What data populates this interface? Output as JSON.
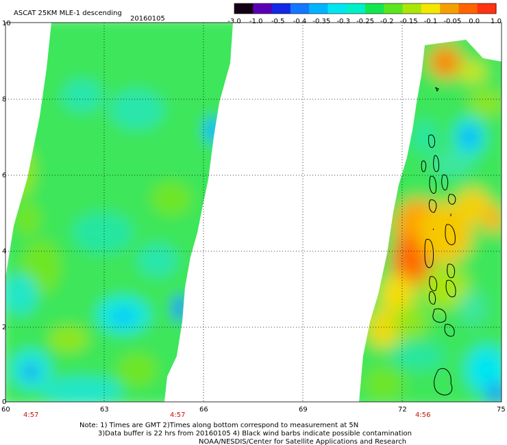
{
  "header": {
    "title": "ASCAT 25KM MLE-1 descending",
    "date": "20160105"
  },
  "colorbar": {
    "tick_labels": [
      "-3.0",
      "-1.0",
      "-0.5",
      "-0.4",
      "-0.35",
      "-0.3",
      "-0.25",
      "-0.2",
      "-0.15",
      "-0.1",
      "-0.05",
      "0.0",
      "1.0"
    ],
    "colors": [
      "#140014",
      "#5a00b4",
      "#1428e6",
      "#1478ff",
      "#00b4ff",
      "#00e6f0",
      "#00f0c8",
      "#14e650",
      "#5ae61e",
      "#aae60a",
      "#f5e600",
      "#f5a000",
      "#ff6400",
      "#ff3214"
    ]
  },
  "map": {
    "y_ticks": [
      "0",
      "2",
      "4",
      "6",
      "8",
      "10"
    ],
    "x_ticks": [
      "60",
      "63",
      "66",
      "69",
      "72",
      "75"
    ],
    "pass_times": [
      "4:57",
      "4:57",
      "4:56"
    ]
  },
  "footer": {
    "line1": "Note: 1) Times are GMT 2)Times along bottom correspond to measurement at 5N",
    "line2": "3)Data buffer is 22 hrs from 20160105 4) Black wind barbs indicate possible contamination",
    "line3": "NOAA/NESDIS/Center for Satellite Applications and Research"
  }
}
